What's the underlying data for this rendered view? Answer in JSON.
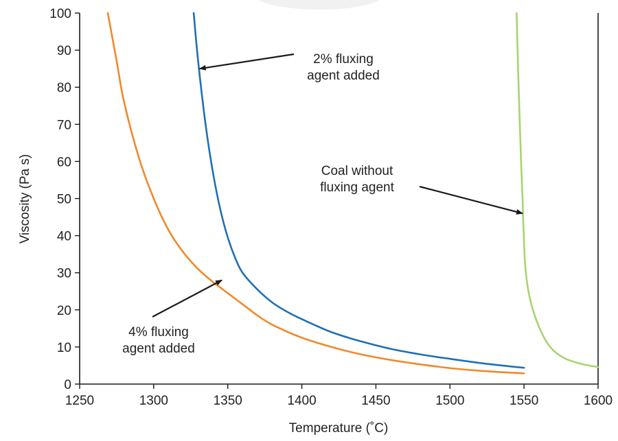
{
  "chart_data": {
    "type": "line",
    "xlabel": "Temperature (˚C)",
    "ylabel": "Viscosity (Pa s)",
    "xlim": [
      1250,
      1600
    ],
    "ylim": [
      0,
      100
    ],
    "xticks": [
      1250,
      1300,
      1350,
      1400,
      1450,
      1500,
      1550,
      1600
    ],
    "yticks": [
      0,
      10,
      20,
      30,
      40,
      50,
      60,
      70,
      80,
      90,
      100
    ],
    "grid": false,
    "series": [
      {
        "color": "#1f6fb5",
        "points": [
          [
            1327,
            100
          ],
          [
            1330,
            87
          ],
          [
            1335,
            70
          ],
          [
            1340,
            57
          ],
          [
            1345,
            47
          ],
          [
            1350,
            39.5
          ],
          [
            1355,
            34
          ],
          [
            1360,
            30
          ],
          [
            1370,
            25.5
          ],
          [
            1380,
            22
          ],
          [
            1390,
            19.5
          ],
          [
            1400,
            17.5
          ],
          [
            1420,
            14
          ],
          [
            1440,
            11.5
          ],
          [
            1460,
            9.5
          ],
          [
            1480,
            8
          ],
          [
            1500,
            6.8
          ],
          [
            1520,
            5.7
          ],
          [
            1540,
            4.8
          ],
          [
            1550,
            4.4
          ]
        ]
      },
      {
        "color": "#f0892a",
        "points": [
          [
            1269,
            100
          ],
          [
            1275,
            87
          ],
          [
            1280,
            76
          ],
          [
            1290,
            61
          ],
          [
            1300,
            50
          ],
          [
            1310,
            41.5
          ],
          [
            1320,
            35.5
          ],
          [
            1330,
            31
          ],
          [
            1340,
            27.5
          ],
          [
            1345,
            26
          ],
          [
            1350,
            24.5
          ],
          [
            1360,
            21.5
          ],
          [
            1370,
            18.5
          ],
          [
            1380,
            16
          ],
          [
            1400,
            12.5
          ],
          [
            1420,
            10
          ],
          [
            1440,
            8
          ],
          [
            1460,
            6.5
          ],
          [
            1480,
            5.3
          ],
          [
            1500,
            4.3
          ],
          [
            1520,
            3.6
          ],
          [
            1540,
            3.1
          ],
          [
            1550,
            2.9
          ]
        ]
      },
      {
        "color": "#a8d46f",
        "points": [
          [
            1545,
            100
          ],
          [
            1546,
            85
          ],
          [
            1547,
            72
          ],
          [
            1548,
            60
          ],
          [
            1549,
            50
          ],
          [
            1550,
            38
          ],
          [
            1551,
            31
          ],
          [
            1553,
            25
          ],
          [
            1556,
            20
          ],
          [
            1560,
            15.5
          ],
          [
            1565,
            11.5
          ],
          [
            1570,
            9
          ],
          [
            1575,
            7.5
          ],
          [
            1580,
            6.5
          ],
          [
            1590,
            5.3
          ],
          [
            1600,
            4.6
          ]
        ]
      }
    ],
    "annotations": [
      {
        "lines": [
          "2% fluxing",
          "agent added"
        ],
        "arrow_to": [
          1331,
          85
        ]
      },
      {
        "lines": [
          "Coal without",
          "fluxing agent"
        ],
        "arrow_to": [
          1549,
          46
        ]
      },
      {
        "lines": [
          "4% fluxing",
          "agent added"
        ],
        "arrow_to": [
          1346,
          28
        ]
      }
    ]
  }
}
